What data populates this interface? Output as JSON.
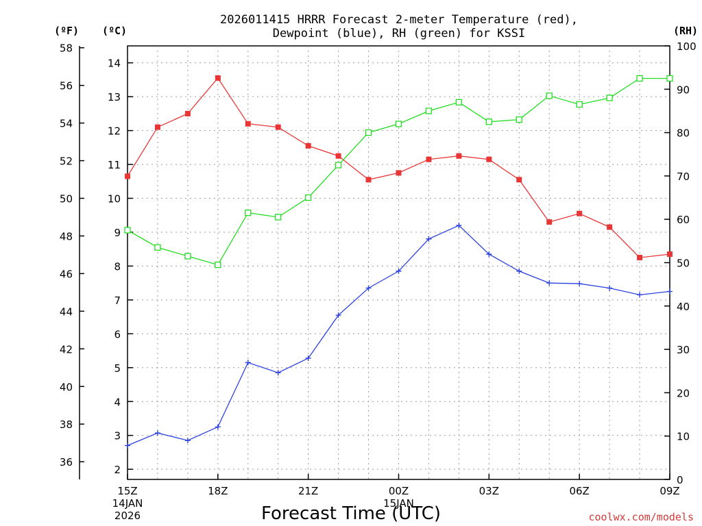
{
  "chart_data": {
    "type": "line",
    "title_line1": "2026011415 HRRR Forecast 2-meter Temperature (red),",
    "title_line2": "Dewpoint (blue), RH (green) for KSSI",
    "xlabel": "Forecast Time (UTC)",
    "credit": "coolwx.com/models",
    "units": {
      "fahrenheit": "(ºF)",
      "celsius": "(ºC)",
      "rh": "(RH)"
    },
    "x": [
      "15Z",
      "16Z",
      "17Z",
      "18Z",
      "19Z",
      "20Z",
      "21Z",
      "22Z",
      "23Z",
      "00Z",
      "01Z",
      "02Z",
      "03Z",
      "04Z",
      "05Z",
      "06Z",
      "07Z",
      "08Z",
      "09Z"
    ],
    "x_ticks": [
      {
        "label": "15Z",
        "sub1": "14JAN",
        "sub2": "2026",
        "index": 0
      },
      {
        "label": "18Z",
        "sub1": "",
        "sub2": "",
        "index": 3
      },
      {
        "label": "21Z",
        "sub1": "",
        "sub2": "",
        "index": 6
      },
      {
        "label": "00Z",
        "sub1": "15JAN",
        "sub2": "",
        "index": 9
      },
      {
        "label": "03Z",
        "sub1": "",
        "sub2": "",
        "index": 12
      },
      {
        "label": "06Z",
        "sub1": "",
        "sub2": "",
        "index": 15
      },
      {
        "label": "09Z",
        "sub1": "",
        "sub2": "",
        "index": 18
      }
    ],
    "celsius_axis": {
      "range": [
        1.7,
        14.5
      ],
      "ticks": [
        2,
        3,
        4,
        5,
        6,
        7,
        8,
        9,
        10,
        11,
        12,
        13,
        14
      ]
    },
    "fahrenheit_axis": {
      "ticks": [
        36,
        38,
        40,
        42,
        44,
        46,
        48,
        50,
        52,
        54,
        56,
        58
      ]
    },
    "rh_axis": {
      "range": [
        0,
        100
      ],
      "ticks": [
        0,
        10,
        20,
        30,
        40,
        50,
        60,
        70,
        80,
        90,
        100
      ]
    },
    "grid": true,
    "series": [
      {
        "name": "Temperature (red)",
        "axis": "celsius",
        "color": "#e83535",
        "marker": "filled-square",
        "values": [
          10.65,
          12.1,
          12.5,
          13.55,
          12.2,
          12.1,
          11.55,
          11.25,
          10.55,
          10.75,
          11.15,
          11.25,
          11.15,
          10.55,
          9.3,
          9.55,
          9.15,
          8.25,
          8.35
        ]
      },
      {
        "name": "Dewpoint (blue)",
        "axis": "celsius",
        "color": "#2c42e0",
        "marker": "plus",
        "values": [
          2.7,
          3.07,
          2.85,
          3.25,
          5.15,
          4.85,
          5.28,
          6.55,
          7.35,
          7.85,
          8.8,
          9.2,
          8.35,
          7.85,
          7.5,
          7.48,
          7.35,
          7.15,
          7.25
        ]
      },
      {
        "name": "RH (green)",
        "axis": "rh",
        "color": "#22dd22",
        "marker": "open-square",
        "values": [
          57.5,
          53.5,
          51.5,
          49.5,
          61.5,
          60.5,
          65,
          72.5,
          80,
          82,
          85,
          87,
          82.5,
          83,
          88.5,
          86.5,
          88,
          92.5,
          92.5
        ]
      }
    ]
  }
}
